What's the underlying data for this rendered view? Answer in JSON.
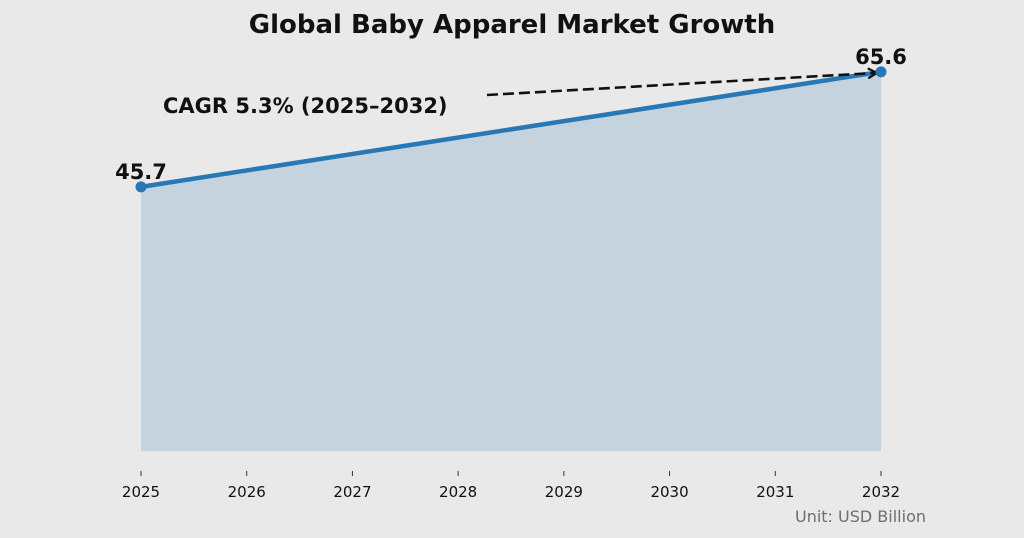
{
  "chart_data": {
    "type": "area",
    "title": "Global Baby Apparel Market Growth",
    "xlabel": "",
    "ylabel": "",
    "x": [
      2025,
      2032
    ],
    "values": [
      45.7,
      65.6
    ],
    "data_labels": [
      "45.7",
      "65.6"
    ],
    "x_ticks": [
      "2025",
      "2026",
      "2027",
      "2028",
      "2029",
      "2030",
      "2031",
      "2032"
    ],
    "ylim": [
      0,
      70
    ],
    "grid": false,
    "annotation": "CAGR 5.3% (2025–2032)",
    "unit_note": "Unit: USD Billion",
    "colors": {
      "line": "#2878b5",
      "fill": "#c5d3df",
      "background": "#e9e9e9"
    }
  }
}
